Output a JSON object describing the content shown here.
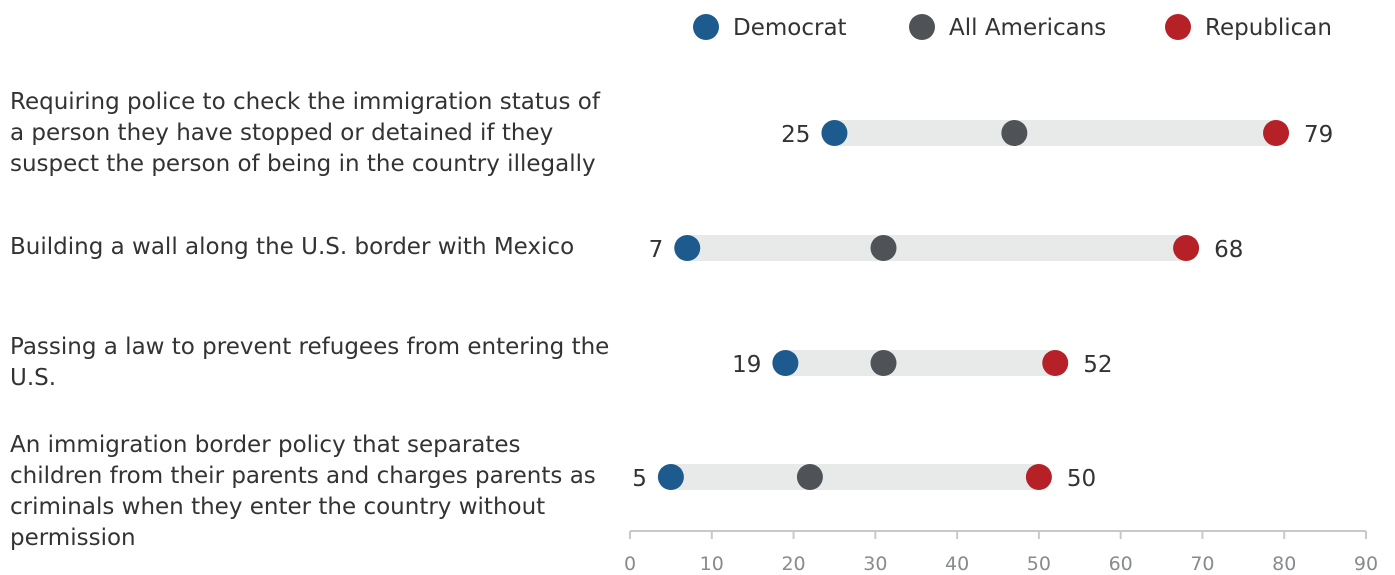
{
  "chart_data": {
    "type": "dot-range",
    "legend": [
      {
        "name": "Democrat",
        "color": "#1d5a8e"
      },
      {
        "name": "All Americans",
        "color": "#4f5357"
      },
      {
        "name": "Republican",
        "color": "#b52126"
      }
    ],
    "categories": [
      {
        "label": "Requiring police to check the immigration status of a person they have stopped or detained if they suspect the person of being in the country illegally",
        "democrat": 25,
        "all": 47,
        "republican": 79
      },
      {
        "label": "Building a wall along the U.S. border with Mexico",
        "democrat": 7,
        "all": 31,
        "republican": 68
      },
      {
        "label": "Passing a law to prevent refugees from entering the U.S.",
        "democrat": 19,
        "all": 31,
        "republican": 52
      },
      {
        "label": "An immigration border policy that separates children from their parents and charges parents as criminals when they enter the country without permission",
        "democrat": 5,
        "all": 22,
        "republican": 50
      }
    ],
    "xaxis": {
      "min": 0,
      "max": 90,
      "ticks": [
        "0",
        "10",
        "20",
        "30",
        "40",
        "50",
        "60",
        "70",
        "80",
        "90"
      ]
    },
    "track_color": "#e8e9e9",
    "axis_color": "#c7c9cb"
  }
}
